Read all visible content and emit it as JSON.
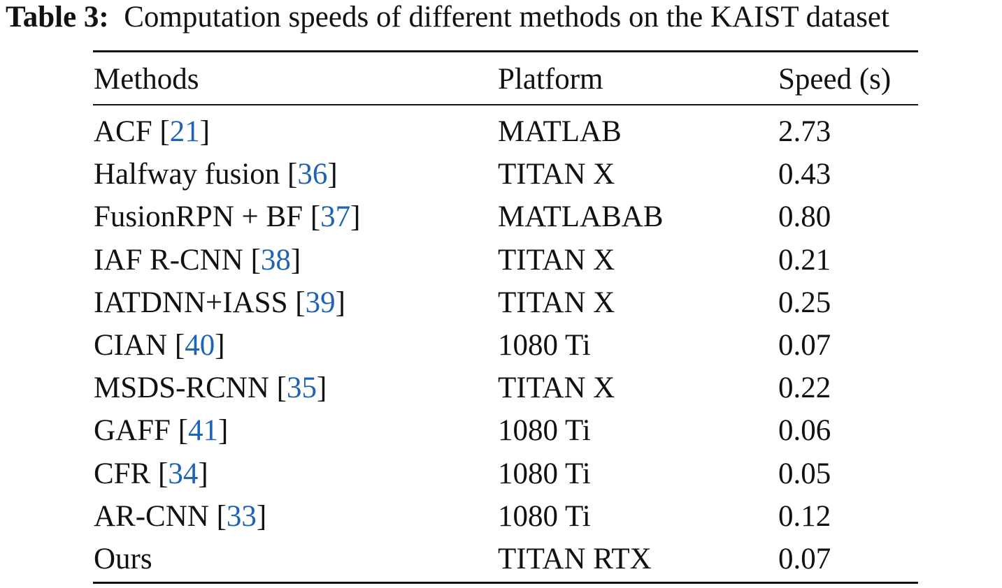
{
  "caption": {
    "label": "Table 3:",
    "text": "Computation speeds of different methods on the KAIST dataset"
  },
  "table": {
    "headers": {
      "method": "Methods",
      "platform": "Platform",
      "speed": "Speed (s)"
    },
    "rows": [
      {
        "method": "ACF",
        "ref": "21",
        "platform": "MATLAB",
        "speed": "2.73"
      },
      {
        "method": "Halfway fusion",
        "ref": "36",
        "platform": "TITAN X",
        "speed": "0.43"
      },
      {
        "method": "FusionRPN + BF",
        "ref": "37",
        "platform": "MATLABAB",
        "speed": "0.80"
      },
      {
        "method": "IAF R-CNN",
        "ref": "38",
        "platform": "TITAN X",
        "speed": "0.21"
      },
      {
        "method": "IATDNN+IASS",
        "ref": "39",
        "platform": "TITAN X",
        "speed": "0.25"
      },
      {
        "method": "CIAN",
        "ref": "40",
        "platform": "1080 Ti",
        "speed": "0.07"
      },
      {
        "method": "MSDS-RCNN",
        "ref": "35",
        "platform": "TITAN X",
        "speed": "0.22"
      },
      {
        "method": "GAFF",
        "ref": "41",
        "platform": "1080 Ti",
        "speed": "0.06"
      },
      {
        "method": "CFR",
        "ref": "34",
        "platform": "1080 Ti",
        "speed": "0.05"
      },
      {
        "method": "AR-CNN",
        "ref": "33",
        "platform": "1080 Ti",
        "speed": "0.12"
      },
      {
        "method": "Ours",
        "ref": null,
        "platform": "TITAN RTX",
        "speed": "0.07"
      }
    ]
  },
  "colors": {
    "text": "#111111",
    "citation_link": "#1f63b5"
  }
}
